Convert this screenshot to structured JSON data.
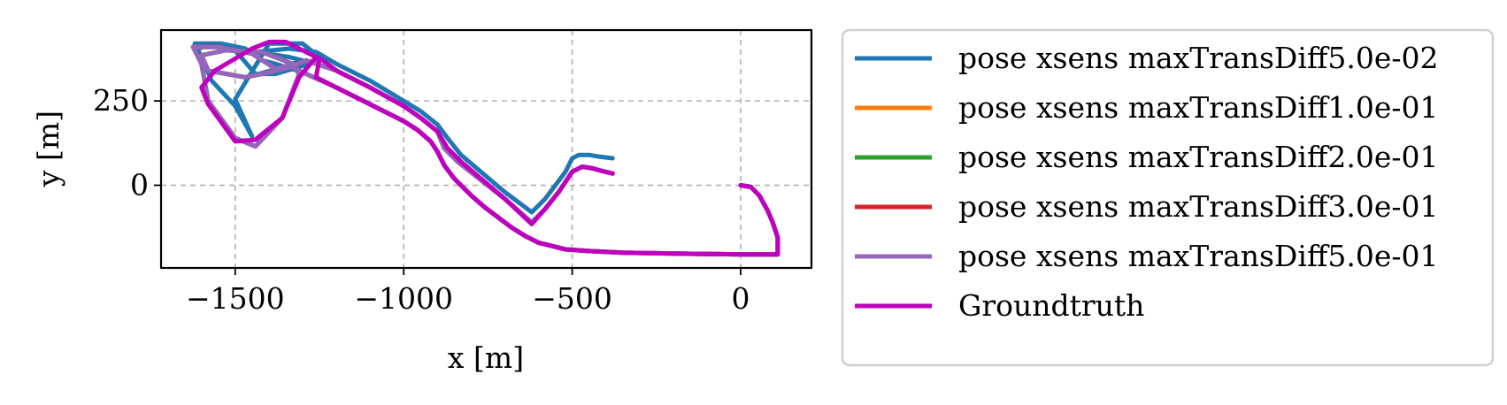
{
  "chart_data": {
    "type": "line",
    "title": "",
    "xlabel": "x [m]",
    "ylabel": "y [m]",
    "xlim": [
      -1720,
      210
    ],
    "ylim": [
      -245,
      460
    ],
    "xticks": [
      {
        "value": -1500,
        "label": "−1500"
      },
      {
        "value": -1000,
        "label": "−1000"
      },
      {
        "value": -500,
        "label": "−500"
      },
      {
        "value": 0,
        "label": "0"
      }
    ],
    "yticks": [
      {
        "value": 0,
        "label": "0"
      },
      {
        "value": 250,
        "label": "250"
      }
    ],
    "grid": true,
    "legend_position": "outside-right",
    "series": [
      {
        "name": "pose xsens maxTransDiff5.0e-02",
        "color": "#1f77b4",
        "x": [
          0,
          30,
          55,
          80,
          95,
          110,
          110,
          20,
          -150,
          -350,
          -450,
          -520,
          -560,
          -600,
          -640,
          -680,
          -720,
          -760,
          -800,
          -850,
          -880,
          -900,
          -920,
          -960,
          -1000,
          -1100,
          -1200,
          -1300,
          -1380,
          -1420,
          -1470,
          -1540,
          -1620,
          -1600,
          -1570,
          -1500,
          -1450,
          -1500,
          -1400,
          -1300,
          -1250,
          -1280,
          -1380,
          -1440,
          -1500,
          -1570,
          -1620,
          -1585,
          -1470,
          -1430,
          -1360,
          -1300,
          -1340,
          -1440,
          -1340,
          -1260,
          -1200,
          -1100,
          -1000,
          -950,
          -900,
          -870,
          -830,
          -700,
          -620,
          -580,
          -550,
          -520,
          -500,
          -480,
          -450,
          -420,
          -380
        ],
        "y": [
          0,
          -5,
          -30,
          -75,
          -110,
          -155,
          -205,
          -205,
          -203,
          -200,
          -195,
          -190,
          -180,
          -170,
          -150,
          -125,
          -95,
          -65,
          -30,
          20,
          60,
          100,
          130,
          165,
          190,
          240,
          290,
          335,
          360,
          370,
          405,
          420,
          420,
          380,
          310,
          235,
          145,
          255,
          420,
          420,
          380,
          360,
          330,
          330,
          400,
          420,
          400,
          340,
          320,
          330,
          350,
          370,
          380,
          395,
          405,
          395,
          360,
          310,
          250,
          220,
          180,
          140,
          90,
          -20,
          -80,
          -40,
          0,
          40,
          80,
          90,
          90,
          85,
          80
        ]
      },
      {
        "name": "pose xsens maxTransDiff1.0e-01",
        "color": "#ff7f0e",
        "x": [
          0,
          30,
          55,
          80,
          95,
          110,
          110,
          20,
          -150,
          -350,
          -450,
          -520,
          -560,
          -600,
          -640,
          -680,
          -720,
          -760,
          -800,
          -850,
          -880,
          -900,
          -920,
          -960,
          -1000,
          -1100,
          -1200,
          -1300,
          -1340,
          -1380,
          -1450,
          -1550,
          -1625,
          -1600,
          -1580,
          -1500,
          -1440,
          -1360,
          -1310,
          -1330,
          -1420,
          -1530,
          -1600,
          -1580,
          -1470,
          -1420,
          -1340,
          -1290,
          -1200,
          -1100,
          -1000,
          -950,
          -900,
          -880,
          -840,
          -700,
          -620,
          -580,
          -540,
          -500,
          -470,
          -440,
          -410,
          -380
        ],
        "y": [
          0,
          -5,
          -30,
          -75,
          -110,
          -155,
          -205,
          -205,
          -203,
          -200,
          -195,
          -190,
          -180,
          -170,
          -150,
          -125,
          -95,
          -65,
          -30,
          20,
          60,
          100,
          130,
          165,
          190,
          240,
          290,
          335,
          355,
          345,
          390,
          410,
          410,
          360,
          250,
          140,
          115,
          200,
          330,
          360,
          395,
          400,
          385,
          340,
          320,
          330,
          350,
          370,
          340,
          290,
          235,
          200,
          160,
          110,
          70,
          -40,
          -110,
          -70,
          -20,
          40,
          55,
          50,
          42,
          35
        ]
      },
      {
        "name": "pose xsens maxTransDiff2.0e-01",
        "color": "#2ca02c",
        "x": [
          0,
          30,
          55,
          80,
          95,
          110,
          110,
          20,
          -150,
          -350,
          -450,
          -520,
          -560,
          -600,
          -640,
          -680,
          -720,
          -760,
          -800,
          -850,
          -880,
          -900,
          -920,
          -960,
          -1000,
          -1100,
          -1200,
          -1300,
          -1340,
          -1380,
          -1450,
          -1550,
          -1625,
          -1600,
          -1580,
          -1500,
          -1440,
          -1360,
          -1310,
          -1330,
          -1420,
          -1530,
          -1600,
          -1580,
          -1470,
          -1420,
          -1340,
          -1290,
          -1200,
          -1100,
          -1000,
          -950,
          -900,
          -880,
          -840,
          -700,
          -620,
          -580,
          -540,
          -500,
          -470,
          -440,
          -410,
          -380
        ],
        "y": [
          0,
          -5,
          -30,
          -75,
          -110,
          -155,
          -205,
          -205,
          -203,
          -200,
          -195,
          -190,
          -180,
          -170,
          -150,
          -125,
          -95,
          -65,
          -30,
          20,
          60,
          100,
          130,
          165,
          190,
          240,
          290,
          335,
          355,
          345,
          390,
          410,
          410,
          360,
          250,
          140,
          115,
          200,
          330,
          360,
          395,
          400,
          385,
          340,
          320,
          330,
          350,
          370,
          340,
          290,
          235,
          200,
          160,
          110,
          70,
          -40,
          -110,
          -70,
          -20,
          40,
          55,
          50,
          42,
          35
        ]
      },
      {
        "name": "pose xsens maxTransDiff3.0e-01",
        "color": "#d62728",
        "x": [
          0,
          30,
          55,
          80,
          95,
          110,
          110,
          20,
          -150,
          -350,
          -450,
          -520,
          -560,
          -600,
          -640,
          -680,
          -720,
          -760,
          -800,
          -850,
          -880,
          -900,
          -920,
          -960,
          -1000,
          -1100,
          -1200,
          -1300,
          -1340,
          -1380,
          -1450,
          -1550,
          -1625,
          -1600,
          -1580,
          -1500,
          -1440,
          -1360,
          -1310,
          -1330,
          -1420,
          -1530,
          -1600,
          -1580,
          -1470,
          -1420,
          -1340,
          -1290,
          -1200,
          -1100,
          -1000,
          -950,
          -900,
          -880,
          -840,
          -700,
          -620,
          -580,
          -540,
          -500,
          -470,
          -440,
          -410,
          -380
        ],
        "y": [
          0,
          -5,
          -30,
          -75,
          -110,
          -155,
          -205,
          -205,
          -203,
          -200,
          -195,
          -190,
          -180,
          -170,
          -150,
          -125,
          -95,
          -65,
          -30,
          20,
          60,
          100,
          130,
          165,
          190,
          240,
          290,
          335,
          355,
          345,
          390,
          410,
          410,
          360,
          250,
          140,
          115,
          200,
          330,
          360,
          395,
          400,
          385,
          340,
          320,
          330,
          350,
          370,
          340,
          290,
          235,
          200,
          160,
          110,
          70,
          -40,
          -110,
          -70,
          -20,
          40,
          55,
          50,
          42,
          35
        ]
      },
      {
        "name": "pose xsens maxTransDiff5.0e-01",
        "color": "#9467bd",
        "x": [
          0,
          30,
          55,
          80,
          95,
          110,
          110,
          20,
          -150,
          -350,
          -450,
          -520,
          -560,
          -600,
          -640,
          -680,
          -720,
          -760,
          -800,
          -850,
          -880,
          -900,
          -920,
          -960,
          -1000,
          -1100,
          -1200,
          -1300,
          -1340,
          -1380,
          -1450,
          -1550,
          -1625,
          -1600,
          -1580,
          -1500,
          -1440,
          -1360,
          -1310,
          -1330,
          -1420,
          -1530,
          -1600,
          -1580,
          -1470,
          -1420,
          -1340,
          -1290,
          -1200,
          -1100,
          -1000,
          -950,
          -900,
          -880,
          -840,
          -700,
          -620,
          -580,
          -540,
          -500,
          -470,
          -440,
          -410,
          -380
        ],
        "y": [
          0,
          -5,
          -30,
          -75,
          -110,
          -155,
          -205,
          -205,
          -203,
          -200,
          -195,
          -190,
          -180,
          -170,
          -150,
          -125,
          -95,
          -65,
          -30,
          20,
          60,
          100,
          130,
          165,
          190,
          240,
          290,
          335,
          355,
          345,
          390,
          410,
          410,
          360,
          250,
          140,
          115,
          200,
          330,
          360,
          395,
          400,
          385,
          340,
          320,
          330,
          350,
          370,
          340,
          290,
          235,
          200,
          160,
          110,
          70,
          -40,
          -110,
          -70,
          -20,
          40,
          55,
          50,
          42,
          35
        ]
      },
      {
        "name": "Groundtruth",
        "color": "#bf00bf",
        "x": [
          0,
          30,
          55,
          80,
          95,
          110,
          110,
          20,
          -150,
          -350,
          -450,
          -520,
          -560,
          -600,
          -640,
          -680,
          -720,
          -760,
          -800,
          -850,
          -880,
          -900,
          -920,
          -960,
          -1000,
          -1100,
          -1200,
          -1260,
          -1250,
          -1300,
          -1350,
          -1400,
          -1450,
          -1560,
          -1600,
          -1580,
          -1500,
          -1440,
          -1360,
          -1310,
          -1260,
          -1240,
          -1200,
          -1100,
          -1000,
          -950,
          -900,
          -870,
          -830,
          -700,
          -620,
          -580,
          -540,
          -500,
          -470,
          -440,
          -410,
          -380
        ],
        "y": [
          0,
          -5,
          -30,
          -75,
          -110,
          -155,
          -205,
          -205,
          -203,
          -200,
          -195,
          -190,
          -180,
          -170,
          -150,
          -125,
          -95,
          -65,
          -30,
          20,
          60,
          100,
          130,
          165,
          190,
          240,
          290,
          320,
          375,
          400,
          425,
          425,
          405,
          340,
          290,
          240,
          130,
          135,
          200,
          320,
          380,
          370,
          340,
          290,
          235,
          200,
          160,
          110,
          70,
          -40,
          -115,
          -70,
          -20,
          40,
          55,
          50,
          42,
          35
        ]
      }
    ]
  }
}
